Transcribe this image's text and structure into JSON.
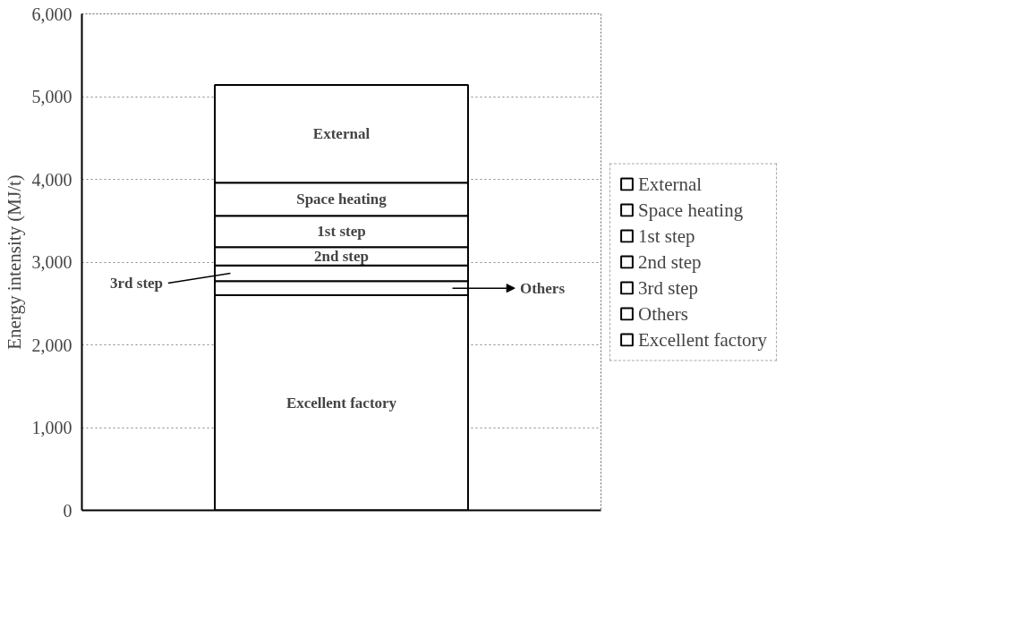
{
  "chart_data": {
    "type": "bar",
    "stacked": true,
    "categories": [
      null
    ],
    "ylabel": "Energy intensity (MJ/t)",
    "ylim": [
      0,
      6000
    ],
    "yticks": [
      {
        "value": 0,
        "label": "0"
      },
      {
        "value": 1000,
        "label": "1,000"
      },
      {
        "value": 2000,
        "label": "2,000"
      },
      {
        "value": 3000,
        "label": "3,000"
      },
      {
        "value": 4000,
        "label": "4,000"
      },
      {
        "value": 5000,
        "label": "5,000"
      },
      {
        "value": 6000,
        "label": "6,000"
      }
    ],
    "grid": "y",
    "legend": "right",
    "series": [
      {
        "name": "Excellent factory",
        "color": "#ffffff",
        "values": [
          2600
        ]
      },
      {
        "name": "Others",
        "color": "#ffffff",
        "values": [
          170
        ]
      },
      {
        "name": "3rd step",
        "color": "#ffffff",
        "values": [
          190
        ]
      },
      {
        "name": "2nd step",
        "color": "#ffffff",
        "values": [
          220
        ]
      },
      {
        "name": "1st step",
        "color": "#ffffff",
        "values": [
          380
        ]
      },
      {
        "name": "Space heating",
        "color": "#ffffff",
        "values": [
          400
        ]
      },
      {
        "name": "External",
        "color": "#ffffff",
        "values": [
          1180
        ]
      }
    ]
  }
}
